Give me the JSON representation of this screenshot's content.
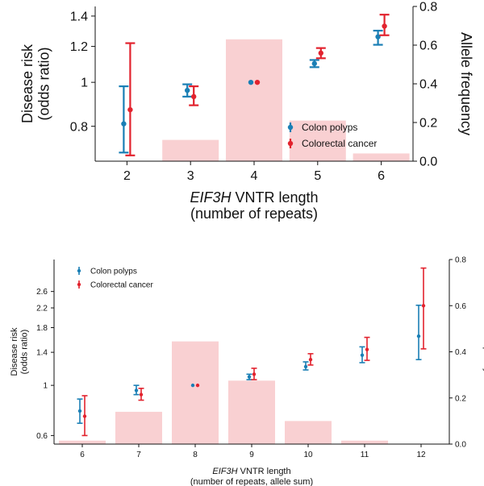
{
  "colors": {
    "polyps": "#1a7fb5",
    "cancer": "#e2232e",
    "bar": "#f9d0d2",
    "axis": "#111111"
  },
  "chart_data": [
    {
      "type": "bar+errorbar",
      "xlabel_italic": "EIF3H",
      "xlabel_rest": " VNTR length",
      "xlabel_line2": "(number of repeats)",
      "ylabel_left": [
        "Disease risk",
        "(odds ratio)"
      ],
      "ylabel_right": "Allele frequency",
      "log_scale_left": true,
      "ylim_left": [
        0.67,
        1.47
      ],
      "ylim_right": [
        0,
        0.8
      ],
      "left_ticks": [
        0.8,
        1,
        1.2,
        1.4
      ],
      "left_tick_labels": [
        "0.8",
        "1",
        "1.2",
        "1.4"
      ],
      "right_ticks": [
        0,
        0.2,
        0.4,
        0.6,
        0.8
      ],
      "right_tick_labels": [
        "0.0",
        "0.2",
        "0.4",
        "0.6",
        "0.8"
      ],
      "categories": [
        "2",
        "3",
        "4",
        "5",
        "6"
      ],
      "allele_frequency": [
        0,
        0.11,
        0.63,
        0.21,
        0.04
      ],
      "legend": [
        "Colon polyps",
        "Colorectal cancer"
      ],
      "legend_position": "bottom-right",
      "series": [
        {
          "name": "Colon polyps",
          "or": [
            0.81,
            0.96,
            1.0,
            1.1,
            1.26
          ],
          "lo": [
            0.7,
            0.93,
            1.0,
            1.08,
            1.21
          ],
          "hi": [
            0.98,
            0.99,
            1.0,
            1.12,
            1.3
          ]
        },
        {
          "name": "Colorectal cancer",
          "or": [
            0.87,
            0.93,
            1.0,
            1.16,
            1.33
          ],
          "lo": [
            0.69,
            0.89,
            1.0,
            1.13,
            1.27
          ],
          "hi": [
            1.22,
            0.98,
            1.0,
            1.19,
            1.41
          ]
        }
      ]
    },
    {
      "type": "bar+errorbar",
      "xlabel_italic": "EIF3H",
      "xlabel_rest": " VNTR length",
      "xlabel_line2": "(number of repeats, allele sum)",
      "ylabel_left": [
        "Disease risk",
        "(odds ratio)"
      ],
      "ylabel_right": "Frequency",
      "log_scale_left": true,
      "ylim_left": [
        0.55,
        3.6
      ],
      "ylim_right": [
        0,
        0.8
      ],
      "left_ticks": [
        0.6,
        1,
        1.4,
        1.8,
        2.2,
        2.6
      ],
      "left_tick_labels": [
        "0.6",
        "1",
        "1.4",
        "1.8",
        "2.2",
        "2.6"
      ],
      "right_ticks": [
        0,
        0.2,
        0.4,
        0.6,
        0.8
      ],
      "right_tick_labels": [
        "0.0",
        "0.2",
        "0.4",
        "0.6",
        "0.8"
      ],
      "categories": [
        "6",
        "7",
        "8",
        "9",
        "10",
        "11",
        "12"
      ],
      "allele_frequency": [
        0.015,
        0.14,
        0.445,
        0.275,
        0.1,
        0.015,
        0
      ],
      "legend": [
        "Colon polyps",
        "Colorectal cancer"
      ],
      "legend_position": "top-left",
      "series": [
        {
          "name": "Colon polyps",
          "or": [
            0.77,
            0.95,
            1.0,
            1.09,
            1.21,
            1.36,
            1.65
          ],
          "lo": [
            0.68,
            0.91,
            1.0,
            1.06,
            1.17,
            1.26,
            1.3
          ],
          "hi": [
            0.87,
            1.0,
            1.0,
            1.12,
            1.27,
            1.48,
            2.26
          ]
        },
        {
          "name": "Colorectal cancer",
          "or": [
            0.73,
            0.91,
            1.0,
            1.12,
            1.3,
            1.44,
            2.25
          ],
          "lo": [
            0.6,
            0.86,
            1.0,
            1.06,
            1.23,
            1.29,
            1.45
          ],
          "hi": [
            0.9,
            0.97,
            1.0,
            1.19,
            1.38,
            1.63,
            3.3
          ]
        }
      ]
    }
  ]
}
